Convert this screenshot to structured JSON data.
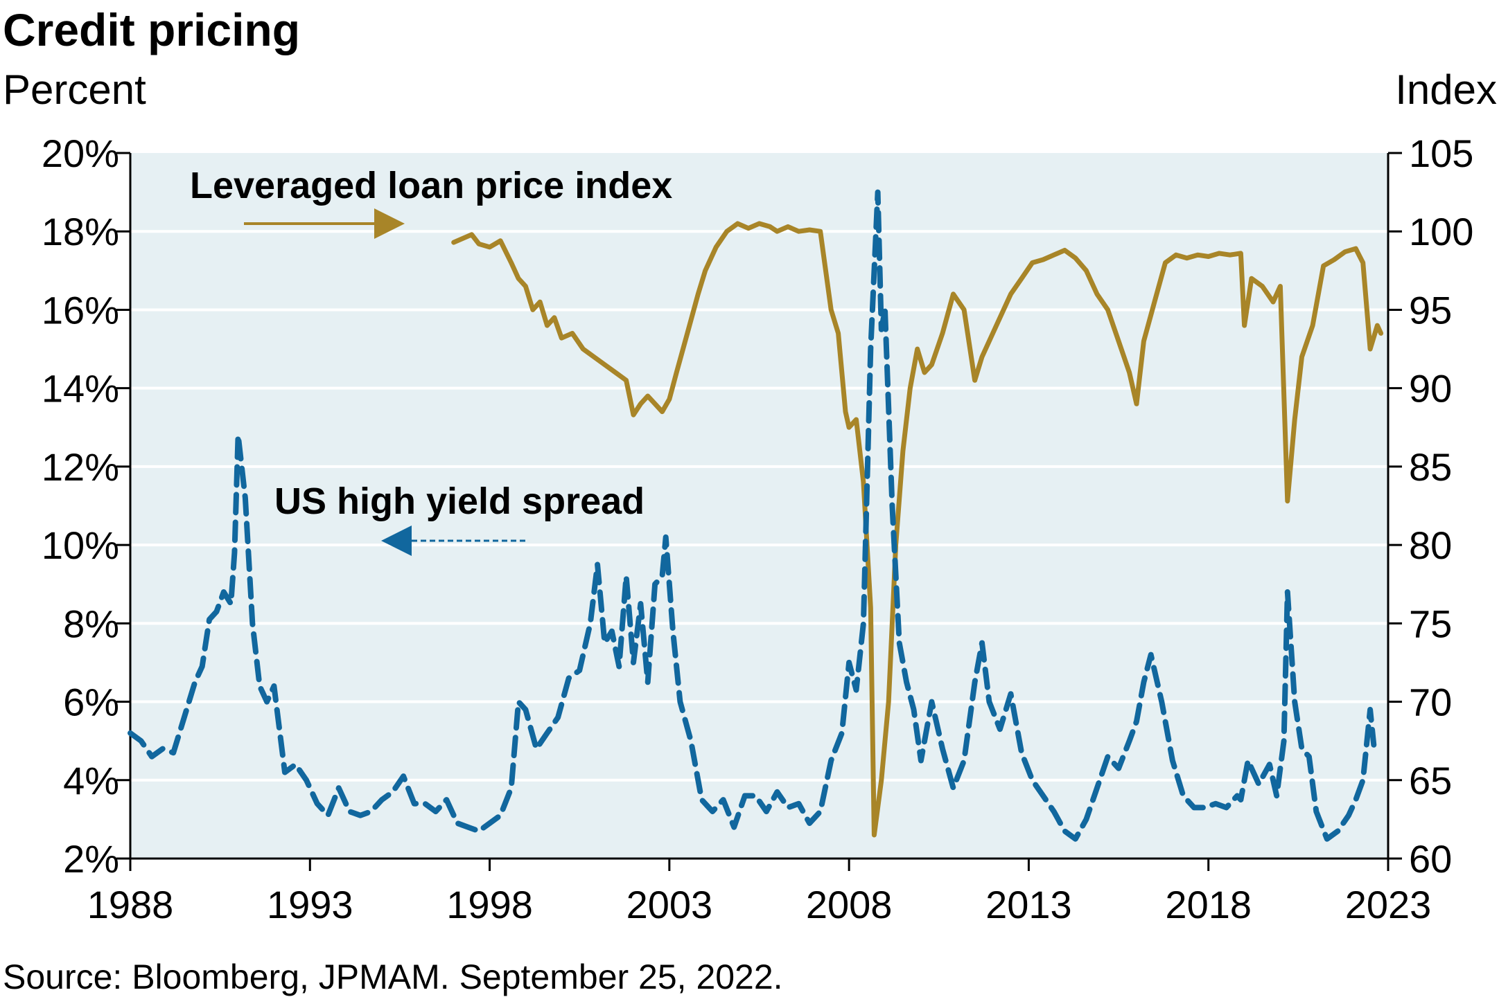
{
  "chart_data": {
    "type": "line",
    "title": "Credit pricing",
    "y_left_label": "Percent",
    "y_right_label": "Index",
    "source": "Source: Bloomberg, JPMAM. September 25, 2022.",
    "x_ticks": [
      "1988",
      "1993",
      "1998",
      "2003",
      "2008",
      "2013",
      "2018",
      "2023"
    ],
    "x_range": [
      1988,
      2023
    ],
    "y_left_ticks": [
      "2%",
      "4%",
      "6%",
      "8%",
      "10%",
      "12%",
      "14%",
      "16%",
      "18%",
      "20%"
    ],
    "y_left_range": [
      2,
      20
    ],
    "y_right_ticks": [
      "60",
      "65",
      "70",
      "75",
      "80",
      "85",
      "90",
      "95",
      "100",
      "105"
    ],
    "y_right_range": [
      60,
      105
    ],
    "grid": true,
    "annotations": {
      "loan_label": "Leveraged loan price index",
      "spread_label": "US high yield spread"
    },
    "colors": {
      "plot_background": "#e6f0f3",
      "gridline": "#ffffff",
      "loan_line": "#a88528",
      "spread_line": "#11679e"
    },
    "series": [
      {
        "name": "US high yield spread",
        "axis": "left",
        "style": "dashed",
        "x": [
          1988.0,
          1988.3,
          1988.6,
          1988.9,
          1989.2,
          1989.5,
          1989.8,
          1990.0,
          1990.2,
          1990.4,
          1990.6,
          1990.8,
          1990.9,
          1991.0,
          1991.2,
          1991.4,
          1991.6,
          1991.8,
          1992.0,
          1992.3,
          1992.6,
          1992.9,
          1993.2,
          1993.5,
          1993.8,
          1994.1,
          1994.4,
          1994.7,
          1995.0,
          1995.3,
          1995.6,
          1995.9,
          1996.2,
          1996.5,
          1996.8,
          1997.1,
          1997.4,
          1997.7,
          1998.0,
          1998.3,
          1998.6,
          1998.8,
          1999.0,
          1999.3,
          1999.6,
          1999.9,
          2000.2,
          2000.5,
          2000.8,
          2001.0,
          2001.2,
          2001.4,
          2001.6,
          2001.8,
          2002.0,
          2002.2,
          2002.4,
          2002.6,
          2002.8,
          2002.9,
          2003.1,
          2003.3,
          2003.6,
          2003.9,
          2004.2,
          2004.5,
          2004.8,
          2005.1,
          2005.4,
          2005.7,
          2006.0,
          2006.3,
          2006.6,
          2006.9,
          2007.2,
          2007.5,
          2007.8,
          2008.0,
          2008.2,
          2008.4,
          2008.6,
          2008.8,
          2008.9,
          2009.0,
          2009.2,
          2009.4,
          2009.6,
          2009.8,
          2010.0,
          2010.3,
          2010.6,
          2010.9,
          2011.2,
          2011.5,
          2011.7,
          2011.9,
          2012.2,
          2012.5,
          2012.8,
          2013.1,
          2013.4,
          2013.7,
          2014.0,
          2014.3,
          2014.6,
          2014.9,
          2015.2,
          2015.5,
          2015.8,
          2016.0,
          2016.2,
          2016.4,
          2016.7,
          2017.0,
          2017.3,
          2017.6,
          2017.9,
          2018.2,
          2018.5,
          2018.8,
          2018.9,
          2019.1,
          2019.4,
          2019.7,
          2019.9,
          2020.1,
          2020.2,
          2020.4,
          2020.6,
          2020.8,
          2021.0,
          2021.3,
          2021.6,
          2021.9,
          2022.1,
          2022.3,
          2022.5,
          2022.6
        ],
        "values": [
          5.2,
          5.0,
          4.6,
          4.8,
          4.7,
          5.6,
          6.5,
          6.9,
          8.1,
          8.3,
          8.8,
          8.5,
          9.8,
          12.8,
          11.2,
          8.0,
          6.4,
          6.0,
          6.4,
          4.2,
          4.4,
          4.0,
          3.4,
          3.1,
          3.8,
          3.2,
          3.1,
          3.2,
          3.5,
          3.7,
          4.1,
          3.4,
          3.4,
          3.2,
          3.5,
          2.9,
          2.8,
          2.7,
          2.9,
          3.1,
          3.8,
          6.0,
          5.8,
          4.8,
          5.2,
          5.6,
          6.6,
          6.8,
          8.0,
          9.5,
          7.5,
          7.8,
          6.9,
          9.2,
          7.0,
          8.5,
          6.5,
          9.0,
          9.2,
          10.2,
          7.8,
          6.0,
          5.0,
          3.5,
          3.2,
          3.5,
          2.8,
          3.6,
          3.6,
          3.2,
          3.7,
          3.3,
          3.4,
          2.9,
          3.2,
          4.5,
          5.2,
          7.0,
          6.3,
          8.0,
          15.0,
          19.0,
          15.5,
          16.0,
          11.0,
          7.5,
          6.5,
          5.8,
          4.5,
          6.0,
          4.8,
          3.8,
          4.5,
          6.5,
          7.5,
          6.0,
          5.3,
          6.2,
          4.7,
          4.0,
          3.6,
          3.2,
          2.7,
          2.5,
          3.0,
          3.8,
          4.6,
          4.3,
          5.0,
          5.5,
          6.5,
          7.2,
          6.0,
          4.5,
          3.6,
          3.3,
          3.3,
          3.4,
          3.3,
          3.6,
          3.5,
          4.5,
          3.9,
          4.4,
          3.6,
          5.0,
          8.8,
          6.0,
          4.8,
          4.6,
          3.2,
          2.5,
          2.7,
          3.1,
          3.5,
          4.0,
          5.8,
          4.9
        ]
      },
      {
        "name": "Leveraged loan price index",
        "axis": "right",
        "style": "solid",
        "x": [
          1997.0,
          1997.5,
          1997.7,
          1998.0,
          1998.3,
          1998.6,
          1998.8,
          1999.0,
          1999.2,
          1999.4,
          1999.6,
          1999.8,
          2000.0,
          2000.3,
          2000.6,
          2000.9,
          2001.2,
          2001.5,
          2001.8,
          2002.0,
          2002.2,
          2002.4,
          2002.6,
          2002.8,
          2003.0,
          2003.2,
          2003.5,
          2003.8,
          2004.0,
          2004.3,
          2004.6,
          2004.9,
          2005.2,
          2005.5,
          2005.8,
          2006.0,
          2006.3,
          2006.6,
          2006.9,
          2007.2,
          2007.5,
          2007.7,
          2007.9,
          2008.0,
          2008.2,
          2008.4,
          2008.6,
          2008.7,
          2008.9,
          2009.1,
          2009.3,
          2009.5,
          2009.7,
          2009.9,
          2010.1,
          2010.3,
          2010.6,
          2010.9,
          2011.2,
          2011.5,
          2011.7,
          2011.9,
          2012.2,
          2012.5,
          2012.8,
          2013.1,
          2013.4,
          2013.7,
          2014.0,
          2014.3,
          2014.6,
          2014.9,
          2015.2,
          2015.5,
          2015.8,
          2016.0,
          2016.2,
          2016.5,
          2016.8,
          2017.1,
          2017.4,
          2017.7,
          2018.0,
          2018.3,
          2018.6,
          2018.9,
          2019.0,
          2019.2,
          2019.5,
          2019.8,
          2020.0,
          2020.2,
          2020.4,
          2020.6,
          2020.9,
          2021.2,
          2021.5,
          2021.8,
          2022.1,
          2022.3,
          2022.5,
          2022.7,
          2022.8
        ],
        "values": [
          99.3,
          99.8,
          99.2,
          99.0,
          99.4,
          98.0,
          97.0,
          96.5,
          95.0,
          95.5,
          94.0,
          94.5,
          93.2,
          93.5,
          92.5,
          92.0,
          91.5,
          91.0,
          90.5,
          88.3,
          89.0,
          89.5,
          89.0,
          88.5,
          89.3,
          91.0,
          93.5,
          96.0,
          97.5,
          99.0,
          100.0,
          100.5,
          100.2,
          100.5,
          100.3,
          100.0,
          100.3,
          100.0,
          100.1,
          100.0,
          95.0,
          93.5,
          88.5,
          87.5,
          88.0,
          84.0,
          76.0,
          61.5,
          65.0,
          70.0,
          80.0,
          86.0,
          90.0,
          92.5,
          91.0,
          91.5,
          93.5,
          96.0,
          95.0,
          90.5,
          92.0,
          93.0,
          94.5,
          96.0,
          97.0,
          98.0,
          98.2,
          98.5,
          98.8,
          98.3,
          97.5,
          96.0,
          95.0,
          93.0,
          91.0,
          89.0,
          93.0,
          95.5,
          98.0,
          98.5,
          98.3,
          98.5,
          98.4,
          98.6,
          98.5,
          98.6,
          94.0,
          97.0,
          96.5,
          95.5,
          96.5,
          82.8,
          88.0,
          92.0,
          94.0,
          97.8,
          98.2,
          98.7,
          98.9,
          98.0,
          92.5,
          94.0,
          93.5
        ]
      }
    ]
  }
}
